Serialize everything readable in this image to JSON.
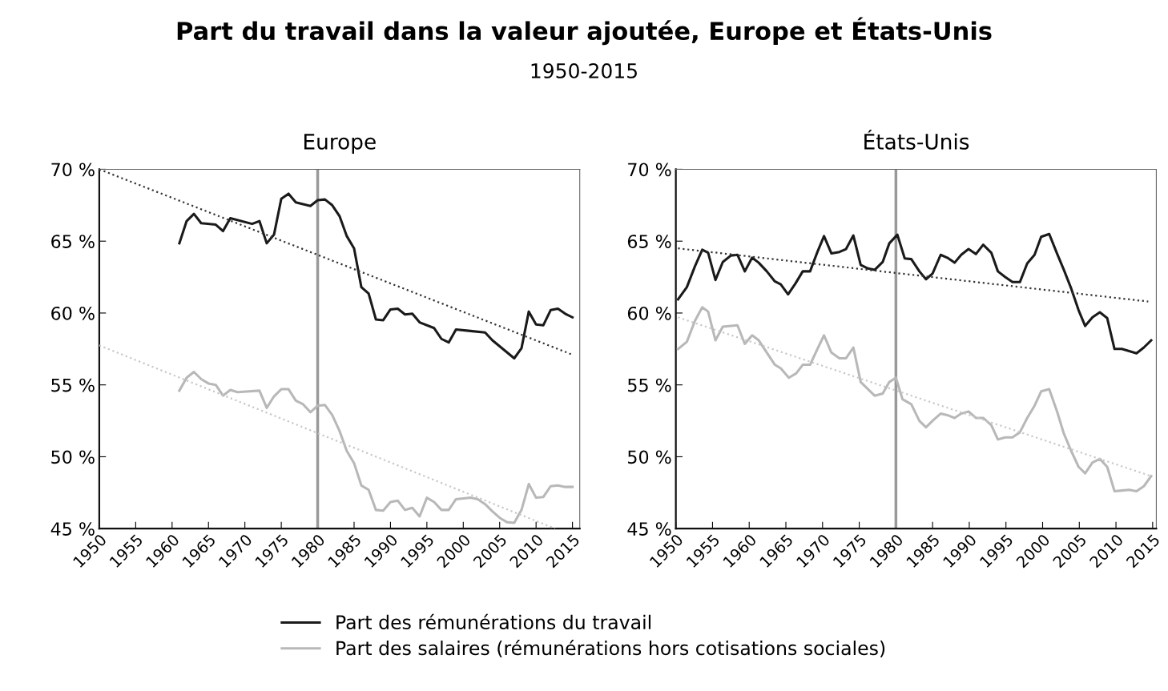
{
  "chart_data": [
    {
      "type": "line",
      "title": "Part du travail dans la valeur ajoutée, Europe et États-Unis",
      "subtitle": "1950-2015",
      "legend": "bottom",
      "grid": false,
      "annotations": [
        "Europe"
      ],
      "xlim": [
        1950,
        2016
      ],
      "xticks": [
        1950,
        1955,
        1960,
        1965,
        1970,
        1975,
        1980,
        1985,
        1990,
        1995,
        2000,
        2005,
        2010,
        2015
      ],
      "ylim": [
        45,
        70
      ],
      "yticks": [
        {
          "value": 45,
          "label": "45 %"
        },
        {
          "value": 50,
          "label": "50 %"
        },
        {
          "value": 55,
          "label": "55 %"
        },
        {
          "value": 60,
          "label": "60 %"
        },
        {
          "value": 65,
          "label": "65 %"
        },
        {
          "value": 70,
          "label": "70 %"
        }
      ],
      "ref_lines": [
        {
          "axis": "x",
          "value": 1980,
          "color": "#999999"
        }
      ],
      "series": [
        {
          "name": "Part des rémunérations du travail",
          "color": "#1a1a1a",
          "line_style": "solid",
          "x": [
            1961,
            1962,
            1963,
            1964,
            1966,
            1967,
            1968,
            1971,
            1972,
            1973,
            1974,
            1975,
            1976,
            1977,
            1979,
            1980,
            1981,
            1982,
            1983,
            1984,
            1985,
            1986,
            1987,
            1988,
            1989,
            1990,
            1991,
            1992,
            1993,
            1994,
            1996,
            1997,
            1998,
            1999,
            2001,
            2003,
            2004,
            2007,
            2008,
            2009,
            2010,
            2011,
            2012,
            2013,
            2014,
            2015
          ],
          "values": [
            64.85,
            66.4,
            66.9,
            66.25,
            66.15,
            65.7,
            66.6,
            66.2,
            66.4,
            64.85,
            65.45,
            67.95,
            68.3,
            67.7,
            67.45,
            67.85,
            67.9,
            67.5,
            66.75,
            65.35,
            64.5,
            61.8,
            61.35,
            59.55,
            59.5,
            60.25,
            60.3,
            59.9,
            59.95,
            59.35,
            58.95,
            58.2,
            57.95,
            58.85,
            58.75,
            58.65,
            58.1,
            56.85,
            57.55,
            60.1,
            59.2,
            59.15,
            60.2,
            60.3,
            59.95,
            59.7
          ]
        },
        {
          "name": "Part des salaires (rémunérations hors cotisations sociales)",
          "color": "#b8b8b8",
          "line_style": "solid",
          "x": [
            1961,
            1962,
            1963,
            1964,
            1965,
            1966,
            1967,
            1968,
            1969,
            1972,
            1973,
            1974,
            1975,
            1976,
            1977,
            1978,
            1979,
            1980,
            1981,
            1982,
            1983,
            1984,
            1985,
            1986,
            1987,
            1988,
            1989,
            1990,
            1991,
            1992,
            1993,
            1994,
            1995,
            1996,
            1997,
            1998,
            1999,
            2001,
            2002,
            2003,
            2004,
            2005,
            2006,
            2007,
            2008,
            2009,
            2010,
            2011,
            2012,
            2013,
            2014,
            2015
          ],
          "values": [
            54.6,
            55.5,
            55.9,
            55.4,
            55.1,
            55.0,
            54.25,
            54.65,
            54.5,
            54.6,
            53.4,
            54.2,
            54.7,
            54.7,
            53.9,
            53.65,
            53.1,
            53.55,
            53.6,
            52.9,
            51.8,
            50.4,
            49.55,
            48.0,
            47.7,
            46.3,
            46.25,
            46.85,
            46.95,
            46.3,
            46.45,
            45.85,
            47.15,
            46.85,
            46.3,
            46.3,
            47.05,
            47.15,
            47.05,
            46.7,
            46.2,
            45.75,
            45.45,
            45.4,
            46.3,
            48.1,
            47.15,
            47.2,
            47.95,
            48.0,
            47.9,
            47.9
          ]
        },
        {
          "color": "#333333",
          "line_style": "dotted",
          "x": [
            1950,
            2015
          ],
          "values": [
            70,
            57.1
          ]
        },
        {
          "color": "#c8c8c8",
          "line_style": "dotted",
          "x": [
            1950,
            2012.6
          ],
          "values": [
            57.75,
            45
          ]
        }
      ]
    },
    {
      "type": "line",
      "grid": false,
      "annotations": [
        "États-Unis"
      ],
      "xlim": [
        1950,
        2015.5
      ],
      "xticks": [
        1950,
        1955,
        1960,
        1965,
        1970,
        1975,
        1980,
        1985,
        1990,
        1995,
        2000,
        2005,
        2010,
        2015
      ],
      "ylim": [
        45,
        70
      ],
      "yticks": [
        {
          "value": 45,
          "label": "45 %"
        },
        {
          "value": 50,
          "label": "50 %"
        },
        {
          "value": 55,
          "label": "55 %"
        },
        {
          "value": 60,
          "label": "60 %"
        },
        {
          "value": 65,
          "label": "65 %"
        },
        {
          "value": 70,
          "label": "70 %"
        }
      ],
      "ref_lines": [
        {
          "axis": "x",
          "value": 1980,
          "color": "#999999"
        }
      ],
      "series": [
        {
          "color": "#1a1a1a",
          "line_style": "solid",
          "x": [
            1950.3,
            1951.5,
            1952.6,
            1953.6,
            1954.4,
            1955.4,
            1956.4,
            1957.5,
            1958.4,
            1959.4,
            1960.4,
            1961.3,
            1962.4,
            1963.5,
            1964.3,
            1965.3,
            1966.3,
            1967.3,
            1968.3,
            1969.3,
            1970.2,
            1971.2,
            1972.3,
            1973.2,
            1974.2,
            1975.2,
            1976.2,
            1977.1,
            1978.2,
            1979.1,
            1980.2,
            1981.2,
            1982.1,
            1983.2,
            1984.1,
            1985.0,
            1986.1,
            1987.0,
            1988.0,
            1988.9,
            1989.9,
            1990.9,
            1991.9,
            1993.0,
            1993.9,
            1994.9,
            1995.9,
            1996.9,
            1997.9,
            1998.9,
            1999.8,
            2000.9,
            2002.0,
            2002.9,
            2003.9,
            2004.9,
            2005.8,
            2006.8,
            2007.8,
            2008.8,
            2009.8,
            2010.8,
            2011.8,
            2012.8,
            2013.8,
            2014.8
          ],
          "values": [
            60.95,
            61.8,
            63.25,
            64.4,
            64.2,
            62.3,
            63.55,
            64.0,
            64.05,
            62.9,
            63.85,
            63.5,
            62.9,
            62.2,
            62.0,
            61.3,
            62.05,
            62.9,
            62.9,
            64.25,
            65.35,
            64.15,
            64.25,
            64.45,
            65.4,
            63.35,
            63.1,
            63.0,
            63.55,
            64.85,
            65.45,
            63.8,
            63.75,
            62.9,
            62.35,
            62.75,
            64.05,
            63.85,
            63.5,
            64.05,
            64.45,
            64.1,
            64.75,
            64.2,
            62.9,
            62.5,
            62.15,
            62.15,
            63.45,
            64.05,
            65.3,
            65.5,
            64.1,
            63.0,
            61.7,
            60.2,
            59.1,
            59.7,
            60.05,
            59.65,
            57.5,
            57.5,
            57.35,
            57.2,
            57.6,
            58.1
          ]
        },
        {
          "color": "#b8b8b8",
          "line_style": "solid",
          "x": [
            1950.3,
            1951.5,
            1952.6,
            1953.6,
            1954.4,
            1955.4,
            1956.4,
            1958.4,
            1959.4,
            1960.4,
            1961.3,
            1962.4,
            1963.5,
            1964.3,
            1965.4,
            1966.4,
            1967.3,
            1968.3,
            1969.3,
            1970.2,
            1971.2,
            1972.3,
            1973.2,
            1974.2,
            1975.2,
            1976.2,
            1977.1,
            1978.2,
            1979.1,
            1980.0,
            1980.9,
            1982.1,
            1983.2,
            1984.1,
            1985.1,
            1986.1,
            1987.0,
            1988.0,
            1988.9,
            1989.9,
            1990.9,
            1991.9,
            1993.0,
            1993.9,
            1994.9,
            1995.9,
            1996.9,
            1997.9,
            1998.9,
            1999.8,
            2000.9,
            2002.0,
            2002.9,
            2003.9,
            2004.9,
            2005.8,
            2006.8,
            2007.8,
            2008.8,
            2009.8,
            2010.8,
            2011.8,
            2012.8,
            2013.8,
            2014.8
          ],
          "values": [
            57.5,
            58.0,
            59.45,
            60.4,
            60.1,
            58.1,
            59.05,
            59.15,
            57.85,
            58.45,
            58.1,
            57.25,
            56.4,
            56.15,
            55.5,
            55.8,
            56.4,
            56.4,
            57.5,
            58.45,
            57.25,
            56.85,
            56.85,
            57.6,
            55.2,
            54.7,
            54.25,
            54.4,
            55.2,
            55.5,
            54.0,
            53.65,
            52.5,
            52.05,
            52.55,
            53.0,
            52.9,
            52.7,
            53.0,
            53.15,
            52.7,
            52.7,
            52.2,
            51.2,
            51.35,
            51.35,
            51.7,
            52.7,
            53.55,
            54.55,
            54.7,
            53.1,
            51.6,
            50.4,
            49.3,
            48.85,
            49.6,
            49.85,
            49.3,
            47.6,
            47.65,
            47.7,
            47.6,
            47.95,
            48.65
          ]
        },
        {
          "color": "#333333",
          "line_style": "dotted",
          "x": [
            1950.3,
            2014.4
          ],
          "values": [
            64.5,
            60.8
          ]
        },
        {
          "color": "#c8c8c8",
          "line_style": "dotted",
          "x": [
            1950.3,
            2014.8
          ],
          "values": [
            59.7,
            48.65
          ]
        }
      ]
    }
  ]
}
